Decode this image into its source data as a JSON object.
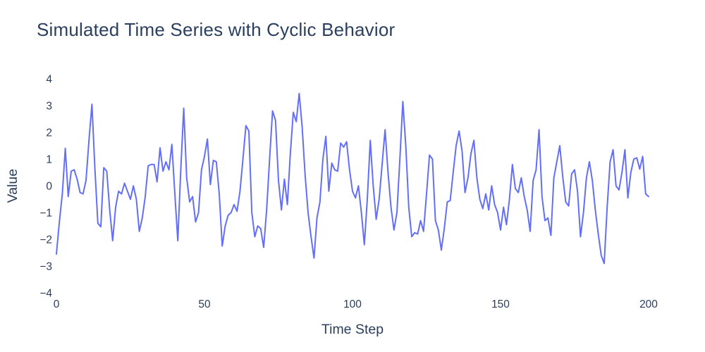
{
  "page": {
    "background_color": "#ffffff"
  },
  "chart": {
    "title_color": "#2a3f5f",
    "tick_label_color": "#2a3f5f",
    "axis_title_color": "#2a3f5f",
    "line_color": "#636efa"
  },
  "chart_data": {
    "type": "line",
    "title": "Simulated Time Series with Cyclic Behavior",
    "xlabel": "Time Step",
    "ylabel": "Value",
    "xlim": [
      0,
      200
    ],
    "ylim": [
      -4,
      4
    ],
    "x_ticks": [
      0,
      50,
      100,
      150,
      200
    ],
    "y_ticks": [
      4,
      3,
      2,
      1,
      0,
      -1,
      -2,
      -3,
      -4
    ],
    "grid": false,
    "legend": false,
    "x_start": 0,
    "x_step": 1,
    "values": [
      -2.55,
      -1.35,
      -0.3,
      1.4,
      -0.4,
      0.55,
      0.6,
      0.25,
      -0.25,
      -0.3,
      0.2,
      1.7,
      3.05,
      0.65,
      -1.4,
      -1.53,
      0.68,
      0.55,
      -0.9,
      -2.05,
      -0.8,
      -0.2,
      -0.3,
      0.1,
      -0.2,
      -0.5,
      0.0,
      -0.5,
      -1.7,
      -1.2,
      -0.4,
      0.75,
      0.8,
      0.8,
      0.15,
      1.42,
      0.55,
      0.9,
      0.6,
      1.55,
      -0.3,
      -2.05,
      0.6,
      2.9,
      0.3,
      -0.6,
      -0.4,
      -1.35,
      -1.0,
      0.6,
      1.1,
      1.75,
      0.05,
      0.95,
      0.9,
      -0.3,
      -2.25,
      -1.5,
      -1.1,
      -1.0,
      -0.7,
      -0.95,
      -0.2,
      1.0,
      2.25,
      2.05,
      -1.0,
      -1.9,
      -1.5,
      -1.6,
      -2.3,
      -0.9,
      1.0,
      2.8,
      2.45,
      0.2,
      -0.9,
      0.25,
      -0.7,
      1.2,
      2.75,
      2.4,
      3.45,
      2.2,
      0.4,
      -1.0,
      -1.9,
      -2.7,
      -1.2,
      -0.6,
      1.0,
      1.85,
      -0.2,
      0.85,
      0.6,
      0.55,
      1.6,
      1.45,
      1.65,
      0.6,
      -0.2,
      -0.45,
      0.0,
      -1.0,
      -2.2,
      -0.5,
      1.7,
      0.0,
      -1.25,
      -0.5,
      0.8,
      2.1,
      0.5,
      -0.8,
      -1.65,
      -1.0,
      1.0,
      3.15,
      1.5,
      -0.8,
      -1.9,
      -1.75,
      -1.8,
      -1.3,
      -1.7,
      -0.3,
      1.15,
      1.0,
      -1.3,
      -1.65,
      -2.4,
      -1.6,
      -0.6,
      -0.55,
      0.5,
      1.5,
      2.05,
      1.3,
      -0.25,
      0.3,
      1.2,
      1.7,
      0.3,
      -0.5,
      -0.85,
      -0.3,
      -0.9,
      0.0,
      -0.7,
      -1.0,
      -1.65,
      -0.8,
      -1.45,
      -0.5,
      0.8,
      -0.1,
      -0.25,
      0.3,
      -0.4,
      -0.9,
      -1.7,
      0.2,
      0.6,
      2.1,
      -0.4,
      -1.3,
      -1.2,
      -1.85,
      0.3,
      0.9,
      1.5,
      0.35,
      -0.6,
      -0.75,
      0.45,
      0.6,
      -0.2,
      -1.9,
      -1.0,
      0.3,
      0.9,
      0.2,
      -0.9,
      -1.8,
      -2.6,
      -2.9,
      -0.8,
      0.9,
      1.35,
      0.0,
      -0.15,
      0.5,
      1.35,
      -0.45,
      0.5,
      1.0,
      1.05,
      0.63,
      1.1,
      -0.3,
      -0.4
    ]
  }
}
